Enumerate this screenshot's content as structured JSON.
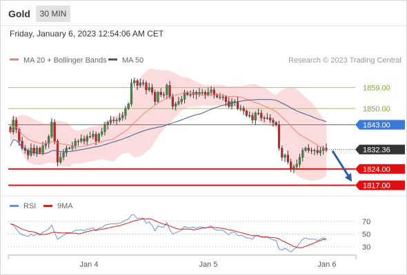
{
  "header": {
    "symbol": "Gold",
    "timeframe": "30 MIN"
  },
  "timestamp": "Friday, January 6, 2023 12:54:06 AM CET",
  "copyright": "Research © 2023 Trading Central",
  "colors": {
    "bullish": "#3f8f3f",
    "bearish": "#c62828",
    "resistance": "#a5c35a",
    "pivot": "#3b78d8",
    "support": "#e01010",
    "current": "#333333",
    "ma20": "#f08080",
    "ma50": "#3b5a8c",
    "bollinger_fill": "#fad6d6",
    "rsi": "#6d8fd4",
    "rsi_ma": "#d21f1f",
    "forecast_arrow": "#2f5e9e"
  },
  "chart_data": [
    {
      "type": "candlestick",
      "legend": [
        {
          "name": "MA 20 + Bollinger Bands",
          "color": "#f08080"
        },
        {
          "name": "MA 50",
          "color": "#3b5a8c"
        }
      ],
      "x_labels": [
        "Jan 4",
        "Jan 5",
        "Jan 6"
      ],
      "y_range": [
        1813,
        1868
      ],
      "levels": [
        {
          "value": 1859.0,
          "label": "1859.00",
          "kind": "resistance"
        },
        {
          "value": 1850.0,
          "label": "1850.00",
          "kind": "resistance"
        },
        {
          "value": 1843.0,
          "label": "1843.00",
          "kind": "pivot"
        },
        {
          "value": 1832.36,
          "label": "1832.36",
          "kind": "current"
        },
        {
          "value": 1824.0,
          "label": "1824.00",
          "kind": "support"
        },
        {
          "value": 1817.0,
          "label": "1817.00",
          "kind": "support"
        }
      ],
      "forecast": {
        "from": 1832.4,
        "to": 1818.5,
        "direction": "down"
      },
      "close": [
        1840,
        1845,
        1841,
        1836,
        1833,
        1832,
        1830,
        1833,
        1831,
        1833,
        1831,
        1834,
        1835,
        1838,
        1844,
        1836,
        1827,
        1829,
        1831,
        1833,
        1833,
        1834,
        1836,
        1836,
        1837,
        1836,
        1838,
        1838,
        1839,
        1836,
        1839,
        1840,
        1843,
        1844,
        1845,
        1845,
        1845,
        1846,
        1847,
        1850,
        1852,
        1861,
        1862,
        1860,
        1861,
        1861,
        1858,
        1859,
        1857,
        1853,
        1857,
        1856,
        1856,
        1860,
        1855,
        1851,
        1852,
        1853,
        1854,
        1857,
        1856,
        1856,
        1857,
        1856,
        1857,
        1857,
        1856,
        1857,
        1858,
        1856,
        1855,
        1855,
        1855,
        1853,
        1851,
        1853,
        1853,
        1850,
        1850,
        1849,
        1847,
        1847,
        1845,
        1848,
        1848,
        1846,
        1846,
        1846,
        1845,
        1844,
        1843,
        1833,
        1829,
        1830,
        1827,
        1824,
        1825,
        1826,
        1829,
        1832,
        1833,
        1832,
        1832,
        1832,
        1831,
        1832,
        1833,
        1832
      ]
    },
    {
      "type": "line",
      "series": [
        {
          "name": "RSI",
          "color": "#6d8fd4"
        },
        {
          "name": "9MA",
          "color": "#d21f1f"
        }
      ],
      "y_range": [
        15,
        85
      ],
      "y_ticks": [
        70,
        50,
        30
      ],
      "values": [
        66,
        64,
        58,
        52,
        49,
        48,
        46,
        50,
        47,
        51,
        48,
        53,
        55,
        58,
        64,
        52,
        42,
        45,
        48,
        51,
        51,
        53,
        56,
        56,
        57,
        55,
        58,
        58,
        60,
        55,
        59,
        60,
        64,
        65,
        66,
        66,
        66,
        67,
        69,
        72,
        73,
        80,
        80,
        74,
        75,
        75,
        67,
        69,
        64,
        55,
        63,
        61,
        61,
        68,
        57,
        50,
        52,
        54,
        56,
        62,
        60,
        60,
        61,
        59,
        61,
        61,
        59,
        61,
        63,
        58,
        56,
        56,
        56,
        52,
        49,
        53,
        53,
        48,
        48,
        47,
        44,
        44,
        42,
        48,
        48,
        45,
        45,
        45,
        43,
        41,
        40,
        27,
        25,
        28,
        25,
        22,
        26,
        30,
        36,
        42,
        44,
        42,
        42,
        42,
        40,
        42,
        44,
        42
      ]
    }
  ]
}
